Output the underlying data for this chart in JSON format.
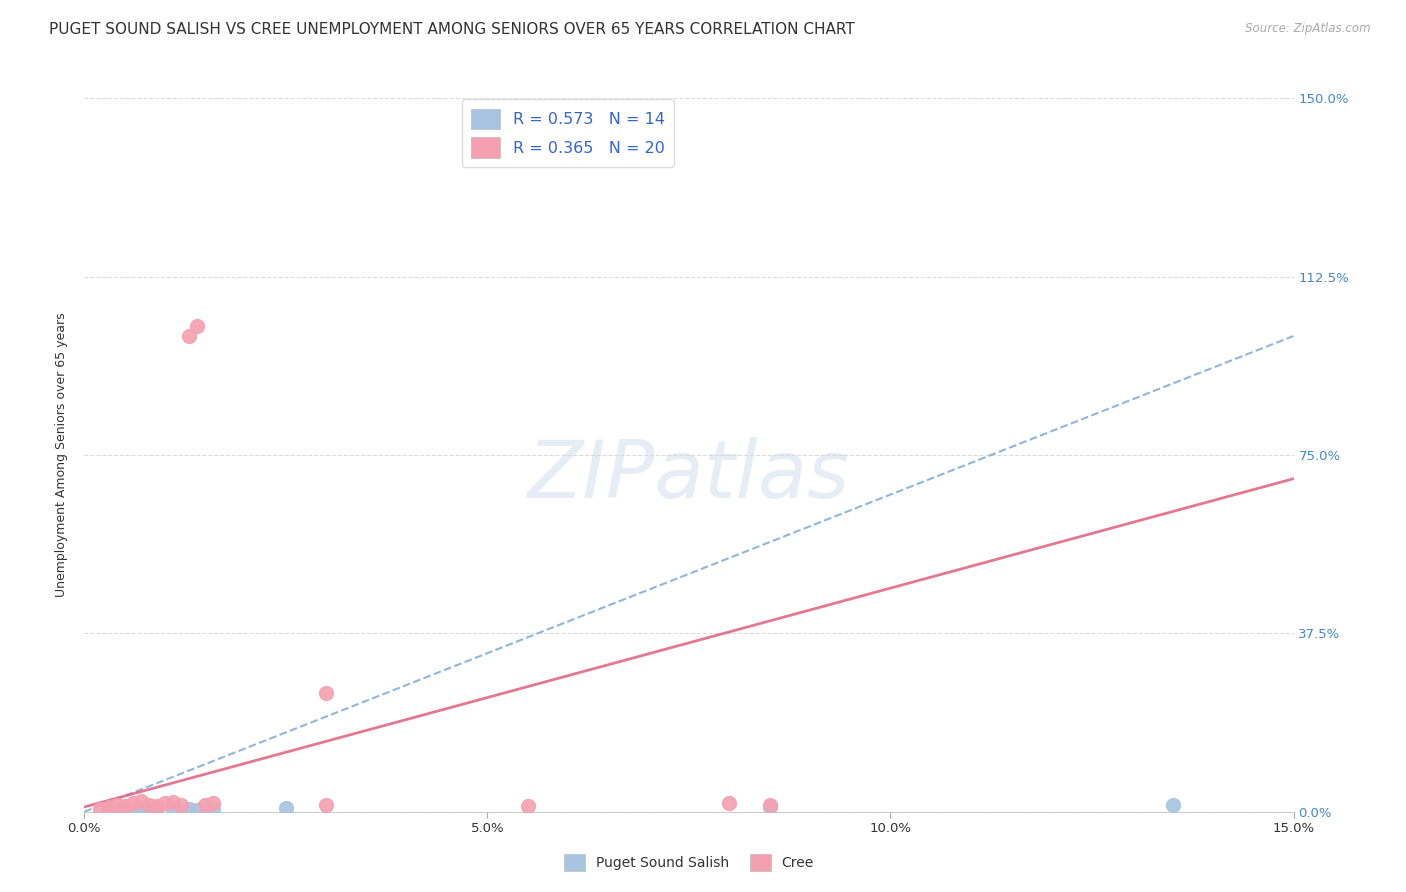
{
  "title": "PUGET SOUND SALISH VS CREE UNEMPLOYMENT AMONG SENIORS OVER 65 YEARS CORRELATION CHART",
  "source": "Source: ZipAtlas.com",
  "ylabel": "Unemployment Among Seniors over 65 years",
  "xlim": [
    0.0,
    0.15
  ],
  "ylim": [
    0.0,
    1.5
  ],
  "xticks": [
    0.0,
    0.05,
    0.1,
    0.15
  ],
  "xticklabels": [
    "0.0%",
    "5.0%",
    "10.0%",
    "15.0%"
  ],
  "yticks": [
    0.0,
    0.375,
    0.75,
    1.125,
    1.5
  ],
  "yticklabels": [
    "0.0%",
    "37.5%",
    "75.0%",
    "112.5%",
    "150.0%"
  ],
  "watermark": "ZIPatlas",
  "legend1_label": "R = 0.573   N = 14",
  "legend2_label": "R = 0.365   N = 20",
  "legend_bottom1": "Puget Sound Salish",
  "legend_bottom2": "Cree",
  "salish_color": "#a8c4e0",
  "cree_color": "#f4a0b0",
  "salish_line_color": "#5590cc",
  "cree_line_color": "#e06080",
  "salish_x": [
    0.003,
    0.004,
    0.005,
    0.006,
    0.007,
    0.008,
    0.009,
    0.011,
    0.013,
    0.014,
    0.016,
    0.025,
    0.085,
    0.135
  ],
  "salish_y": [
    0.004,
    0.005,
    0.003,
    0.004,
    0.006,
    0.003,
    0.008,
    0.005,
    0.005,
    0.003,
    0.006,
    0.007,
    0.01,
    0.015
  ],
  "cree_x": [
    0.002,
    0.003,
    0.004,
    0.005,
    0.006,
    0.007,
    0.008,
    0.009,
    0.01,
    0.011,
    0.012,
    0.013,
    0.014,
    0.015,
    0.016,
    0.03,
    0.03,
    0.055,
    0.08,
    0.085
  ],
  "cree_y": [
    0.005,
    0.01,
    0.015,
    0.012,
    0.018,
    0.022,
    0.015,
    0.012,
    0.018,
    0.02,
    0.015,
    1.0,
    1.02,
    0.015,
    0.018,
    0.25,
    0.015,
    0.012,
    0.018,
    0.015
  ],
  "grid_color": "#cccccc",
  "bg_color": "#ffffff",
  "title_fontsize": 11,
  "axis_fontsize": 9.5,
  "tick_color_y": "#4488cc",
  "tick_color_x": "#333333"
}
